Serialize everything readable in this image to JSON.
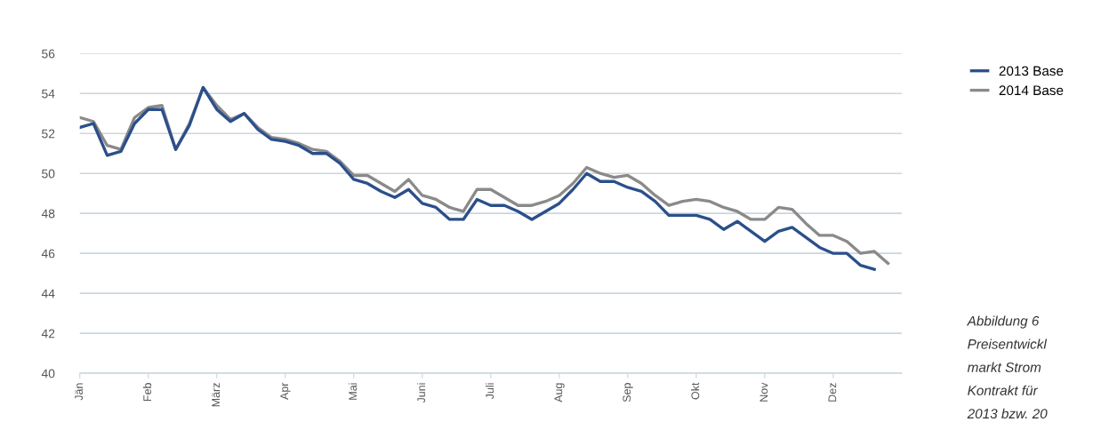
{
  "chart_data": {
    "type": "line",
    "ylim": [
      40,
      56
    ],
    "categories": [
      "Jän",
      null,
      null,
      null,
      null,
      "Feb",
      null,
      null,
      null,
      null,
      "März",
      null,
      null,
      null,
      null,
      "Apr",
      null,
      null,
      null,
      null,
      "Mai",
      null,
      null,
      null,
      null,
      "Juni",
      null,
      null,
      null,
      null,
      "Juli",
      null,
      null,
      null,
      null,
      "Aug",
      null,
      null,
      null,
      null,
      "Sep",
      null,
      null,
      null,
      null,
      "Okt",
      null,
      null,
      null,
      null,
      "Nov",
      null,
      null,
      null,
      null,
      "Dez",
      null,
      null,
      null,
      null
    ],
    "yticks": [
      40,
      42,
      44,
      46,
      48,
      50,
      52,
      54,
      56
    ],
    "grid": "y",
    "legend": "top right",
    "marker": "none",
    "line_style": "solid",
    "annotations": [
      "Abbildung 6",
      "Preisentwickl",
      "markt Strom",
      "Kontrakt für",
      "2013 bzw. 20"
    ],
    "series": [
      {
        "name": "2013 Base",
        "color": "#2b4f8c",
        "values": [
          52.3,
          52.5,
          50.9,
          51.1,
          52.5,
          53.2,
          53.2,
          51.2,
          52.4,
          54.3,
          53.2,
          52.6,
          53.0,
          52.2,
          51.7,
          51.6,
          51.4,
          51.0,
          51.0,
          50.5,
          49.7,
          49.5,
          49.1,
          48.8,
          49.2,
          48.5,
          48.3,
          47.7,
          47.7,
          48.7,
          48.4,
          48.4,
          48.1,
          47.7,
          48.1,
          48.5,
          49.2,
          50.0,
          49.6,
          49.6,
          49.3,
          49.1,
          48.6,
          47.9,
          47.9,
          47.9,
          47.7,
          47.2,
          47.6,
          47.1,
          46.6,
          47.1,
          47.3,
          46.8,
          46.3,
          46.0,
          46.0,
          45.4,
          45.2,
          null
        ]
      },
      {
        "name": "2014 Base",
        "color": "#8a8a8a",
        "values": [
          52.8,
          52.6,
          51.4,
          51.2,
          52.8,
          53.3,
          53.4,
          51.2,
          52.5,
          54.3,
          53.4,
          52.7,
          53.0,
          52.3,
          51.8,
          51.7,
          51.5,
          51.2,
          51.1,
          50.6,
          49.9,
          49.9,
          49.5,
          49.1,
          49.7,
          48.9,
          48.7,
          48.3,
          48.1,
          49.2,
          49.2,
          48.8,
          48.4,
          48.4,
          48.6,
          48.9,
          49.5,
          50.3,
          50.0,
          49.8,
          49.9,
          49.5,
          48.9,
          48.4,
          48.6,
          48.7,
          48.6,
          48.3,
          48.1,
          47.7,
          47.7,
          48.3,
          48.2,
          47.5,
          46.9,
          46.9,
          46.6,
          46.0,
          46.1,
          45.5
        ]
      }
    ]
  }
}
